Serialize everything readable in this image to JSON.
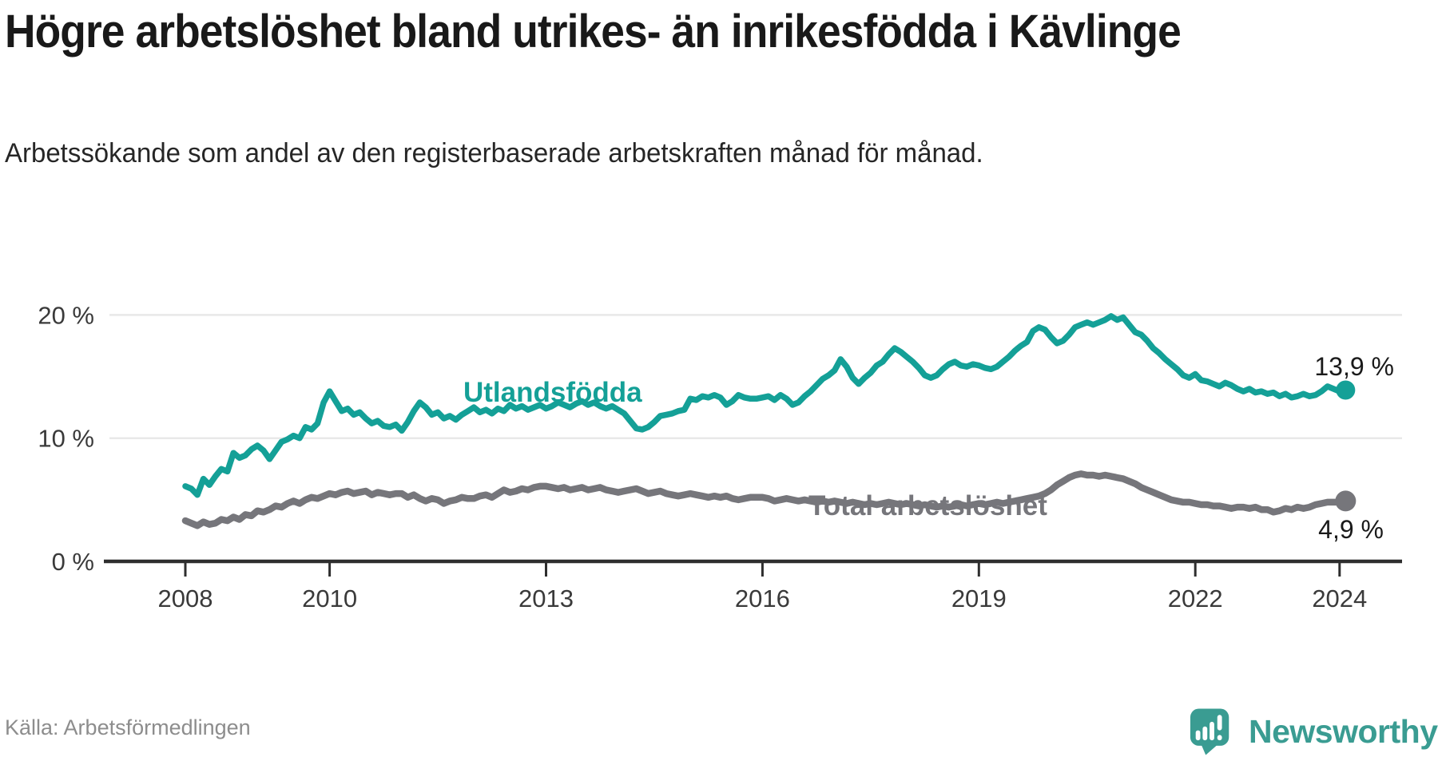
{
  "title": "Högre arbetslöshet bland utrikes- än inrikesfödda i Kävlinge",
  "subtitle": "Arbetssökande som andel av den registerbaserade arbetskraften månad för månad.",
  "source": "Källa: Arbetsförmedlingen",
  "branding": {
    "logo_text": "Newsworthy",
    "logo_icon": "newsworthy-speech-bubble-chart-icon",
    "logo_color": "#3a9c92"
  },
  "colors": {
    "background": "#ffffff",
    "title_text": "#191919",
    "subtitle_text": "#262626",
    "axis_line": "#2e2e2e",
    "tick_label": "#3a3a3a",
    "gridline": "#e8e8e8",
    "source_text": "#8d8d8d",
    "value_label": "#1a1a1a",
    "series_foreign_born": "#14a097",
    "series_total": "#76767b"
  },
  "chart_data": {
    "type": "line",
    "title": "Högre arbetslöshet bland utrikes- än inrikesfödda i Kävlinge",
    "subtitle": "Arbetssökande som andel av den registerbaserade arbetskraften månad för månad.",
    "unit": "percent",
    "x_interval": "monthly",
    "x_start": "2008-01",
    "x_end": "2024-02",
    "x_ticks": [
      2008,
      2010,
      2013,
      2016,
      2019,
      2022,
      2024
    ],
    "y_ticks": [
      {
        "value": 0,
        "label": "0 %"
      },
      {
        "value": 10,
        "label": "10 %"
      },
      {
        "value": 20,
        "label": "20 %"
      }
    ],
    "ylim": [
      0,
      21.8
    ],
    "grid": "horizontal-only",
    "legend_position": "inline-labels-on-lines",
    "series": [
      {
        "name": "Utlandsfödda",
        "color": "#14a097",
        "end_label": "13,9 %",
        "end_value": 13.9,
        "values": [
          6.1,
          5.9,
          5.4,
          6.7,
          6.2,
          6.9,
          7.5,
          7.3,
          8.8,
          8.4,
          8.6,
          9.1,
          9.4,
          9.0,
          8.3,
          9.0,
          9.7,
          9.9,
          10.2,
          10.0,
          10.9,
          10.7,
          11.2,
          12.9,
          13.8,
          13.0,
          12.2,
          12.4,
          11.9,
          12.1,
          11.6,
          11.2,
          11.4,
          11.0,
          10.9,
          11.1,
          10.6,
          11.3,
          12.2,
          12.9,
          12.5,
          11.9,
          12.1,
          11.6,
          11.8,
          11.5,
          11.9,
          12.2,
          12.5,
          12.1,
          12.3,
          12.0,
          12.4,
          12.2,
          12.7,
          12.4,
          12.6,
          12.3,
          12.5,
          12.7,
          12.4,
          12.6,
          12.9,
          12.7,
          12.5,
          12.8,
          13.0,
          12.7,
          12.9,
          12.6,
          12.4,
          12.6,
          12.3,
          12.0,
          11.4,
          10.8,
          10.7,
          10.9,
          11.3,
          11.8,
          11.9,
          12.0,
          12.2,
          12.3,
          13.2,
          13.1,
          13.4,
          13.3,
          13.5,
          13.3,
          12.7,
          13.0,
          13.5,
          13.3,
          13.2,
          13.2,
          13.3,
          13.4,
          13.1,
          13.5,
          13.2,
          12.7,
          12.9,
          13.4,
          13.8,
          14.3,
          14.8,
          15.1,
          15.5,
          16.4,
          15.8,
          14.9,
          14.4,
          14.9,
          15.3,
          15.9,
          16.2,
          16.8,
          17.3,
          17.0,
          16.6,
          16.2,
          15.7,
          15.1,
          14.9,
          15.1,
          15.6,
          16.0,
          16.2,
          15.9,
          15.8,
          16.0,
          15.9,
          15.7,
          15.6,
          15.8,
          16.2,
          16.6,
          17.1,
          17.5,
          17.8,
          18.7,
          19.0,
          18.8,
          18.2,
          17.7,
          17.9,
          18.4,
          19.0,
          19.2,
          19.4,
          19.2,
          19.4,
          19.6,
          19.9,
          19.6,
          19.8,
          19.2,
          18.6,
          18.4,
          17.9,
          17.3,
          16.9,
          16.4,
          16.0,
          15.6,
          15.1,
          14.9,
          15.2,
          14.7,
          14.6,
          14.4,
          14.2,
          14.5,
          14.3,
          14.0,
          13.8,
          14.0,
          13.7,
          13.8,
          13.6,
          13.7,
          13.4,
          13.6,
          13.3,
          13.4,
          13.6,
          13.4,
          13.5,
          13.8,
          14.2,
          14.0,
          13.8,
          13.9
        ]
      },
      {
        "name": "Total arbetslöshet",
        "color": "#76767b",
        "end_label": "4,9 %",
        "end_value": 4.9,
        "values": [
          3.3,
          3.1,
          2.9,
          3.2,
          3.0,
          3.1,
          3.4,
          3.3,
          3.6,
          3.4,
          3.8,
          3.7,
          4.1,
          4.0,
          4.2,
          4.5,
          4.4,
          4.7,
          4.9,
          4.7,
          5.0,
          5.2,
          5.1,
          5.3,
          5.5,
          5.4,
          5.6,
          5.7,
          5.5,
          5.6,
          5.7,
          5.4,
          5.6,
          5.5,
          5.4,
          5.5,
          5.5,
          5.2,
          5.4,
          5.1,
          4.9,
          5.1,
          5.0,
          4.7,
          4.9,
          5.0,
          5.2,
          5.1,
          5.1,
          5.3,
          5.4,
          5.2,
          5.5,
          5.8,
          5.6,
          5.7,
          5.9,
          5.8,
          6.0,
          6.1,
          6.1,
          6.0,
          5.9,
          6.0,
          5.8,
          5.9,
          6.0,
          5.8,
          5.9,
          6.0,
          5.8,
          5.7,
          5.6,
          5.7,
          5.8,
          5.9,
          5.7,
          5.5,
          5.6,
          5.7,
          5.5,
          5.4,
          5.3,
          5.4,
          5.5,
          5.4,
          5.3,
          5.2,
          5.3,
          5.2,
          5.3,
          5.1,
          5.0,
          5.1,
          5.2,
          5.2,
          5.2,
          5.1,
          4.9,
          5.0,
          5.1,
          5.0,
          4.9,
          5.0,
          4.9,
          4.8,
          4.9,
          4.8,
          4.9,
          4.8,
          4.7,
          4.8,
          4.7,
          4.6,
          4.7,
          4.6,
          4.7,
          4.8,
          4.7,
          4.6,
          4.7,
          4.6,
          4.5,
          4.6,
          4.5,
          4.4,
          4.5,
          4.4,
          4.5,
          4.6,
          4.5,
          4.6,
          4.7,
          4.6,
          4.7,
          4.8,
          4.7,
          4.8,
          4.9,
          5.0,
          5.1,
          5.2,
          5.3,
          5.5,
          5.8,
          6.2,
          6.5,
          6.8,
          7.0,
          7.1,
          7.0,
          7.0,
          6.9,
          7.0,
          6.9,
          6.8,
          6.7,
          6.5,
          6.3,
          6.0,
          5.8,
          5.6,
          5.4,
          5.2,
          5.0,
          4.9,
          4.8,
          4.8,
          4.7,
          4.6,
          4.6,
          4.5,
          4.5,
          4.4,
          4.3,
          4.4,
          4.4,
          4.3,
          4.4,
          4.2,
          4.2,
          4.0,
          4.1,
          4.3,
          4.2,
          4.4,
          4.3,
          4.4,
          4.6,
          4.7,
          4.8,
          4.8,
          4.8,
          4.9
        ]
      }
    ]
  }
}
